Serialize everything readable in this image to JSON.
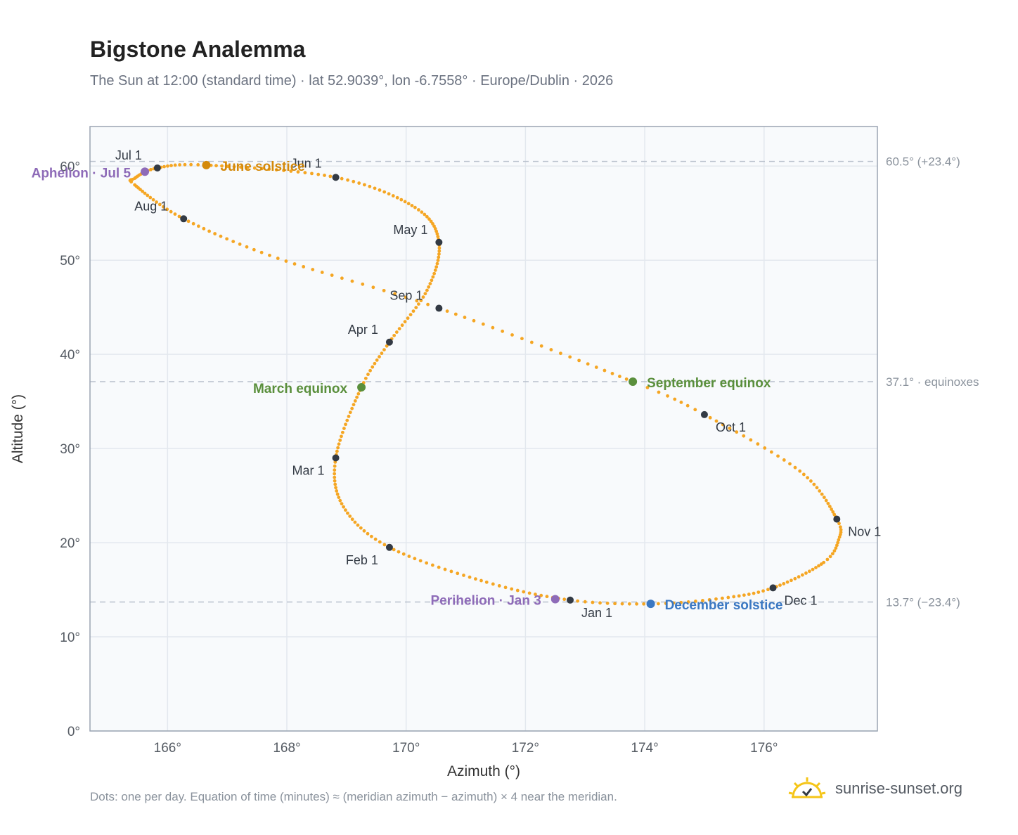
{
  "title": "Bigstone Analemma",
  "subtitle": "The Sun at 12:00 (standard time) · lat 52.9039°, lon -6.7558° · Europe/Dublin · 2026",
  "footnote": "Dots: one per day. Equation of time (minutes) ≈ (meridian azimuth − azimuth) × 4 near the meridian.",
  "brand": {
    "text": "sunrise-sunset.org",
    "icon": "sun-logo-icon"
  },
  "chart_data": {
    "type": "scatter",
    "xlabel": "Azimuth (°)",
    "ylabel": "Altitude (°)",
    "xlim": [
      164.7,
      177.9
    ],
    "ylim": [
      0,
      64.2
    ],
    "x_ticks": [
      166,
      168,
      170,
      172,
      174,
      176
    ],
    "x_tick_labels": [
      "166°",
      "168°",
      "170°",
      "172°",
      "174°",
      "176°"
    ],
    "y_ticks": [
      0,
      10,
      20,
      30,
      40,
      50,
      60
    ],
    "y_tick_labels": [
      "0°",
      "10°",
      "20°",
      "30°",
      "40°",
      "50°",
      "60°"
    ],
    "grid": true,
    "colors": {
      "path": "#f5a623",
      "month_marker": "#333a44",
      "equinox": "#5a8f3c",
      "solstice_june": "#d4890a",
      "solstice_december": "#3b78c2",
      "apsis": "#8e6bb8",
      "reference_line": "#b8c0cc"
    },
    "reference_lines": [
      {
        "y": 60.5,
        "label": "60.5° (+23.4°)"
      },
      {
        "y": 37.1,
        "label": "37.1° · equinoxes"
      },
      {
        "y": 13.7,
        "label": "13.7° (−23.4°)"
      }
    ],
    "month_markers": [
      {
        "label": "Jan 1",
        "az": 172.75,
        "alt": 13.9
      },
      {
        "label": "Feb 1",
        "az": 169.72,
        "alt": 19.5
      },
      {
        "label": "Mar 1",
        "az": 168.82,
        "alt": 29.0
      },
      {
        "label": "Apr 1",
        "az": 169.72,
        "alt": 41.3
      },
      {
        "label": "May 1",
        "az": 170.55,
        "alt": 51.9
      },
      {
        "label": "Jun 1",
        "az": 168.82,
        "alt": 58.8
      },
      {
        "label": "Jul 1",
        "az": 165.83,
        "alt": 59.8
      },
      {
        "label": "Aug 1",
        "az": 166.27,
        "alt": 54.4
      },
      {
        "label": "Sep 1",
        "az": 170.55,
        "alt": 44.9
      },
      {
        "label": "Oct 1",
        "az": 175.0,
        "alt": 33.6
      },
      {
        "label": "Nov 1",
        "az": 177.22,
        "alt": 22.5
      },
      {
        "label": "Dec 1",
        "az": 176.15,
        "alt": 15.2
      }
    ],
    "events": [
      {
        "label": "March equinox",
        "az": 169.25,
        "alt": 36.5,
        "kind": "equinox"
      },
      {
        "label": "June solstice",
        "az": 166.65,
        "alt": 60.1,
        "kind": "solstice_june"
      },
      {
        "label": "September equinox",
        "az": 173.8,
        "alt": 37.1,
        "kind": "equinox"
      },
      {
        "label": "December solstice",
        "az": 174.1,
        "alt": 13.5,
        "kind": "solstice_december"
      },
      {
        "label": "Perihelion · Jan 3",
        "az": 172.5,
        "alt": 14.0,
        "kind": "apsis"
      },
      {
        "label": "Aphelion · Jul 5",
        "az": 165.62,
        "alt": 59.4,
        "kind": "apsis"
      }
    ],
    "path": [
      {
        "day": 1,
        "az": 172.75,
        "alt": 13.9
      },
      {
        "day": 15,
        "az": 171.35,
        "alt": 15.8
      },
      {
        "day": 32,
        "az": 169.72,
        "alt": 19.5
      },
      {
        "day": 46,
        "az": 168.95,
        "alt": 23.8
      },
      {
        "day": 60,
        "az": 168.82,
        "alt": 29.0
      },
      {
        "day": 79,
        "az": 169.25,
        "alt": 36.5
      },
      {
        "day": 91,
        "az": 169.72,
        "alt": 41.3
      },
      {
        "day": 106,
        "az": 170.35,
        "alt": 46.8
      },
      {
        "day": 121,
        "az": 170.55,
        "alt": 51.9
      },
      {
        "day": 135,
        "az": 170.15,
        "alt": 55.6
      },
      {
        "day": 152,
        "az": 168.82,
        "alt": 58.8
      },
      {
        "day": 172,
        "az": 166.65,
        "alt": 60.1
      },
      {
        "day": 182,
        "az": 165.83,
        "alt": 59.8
      },
      {
        "day": 192,
        "az": 165.45,
        "alt": 58.7
      },
      {
        "day": 197,
        "az": 165.45,
        "alt": 58.0
      },
      {
        "day": 213,
        "az": 166.27,
        "alt": 54.4
      },
      {
        "day": 228,
        "az": 167.85,
        "alt": 50.2
      },
      {
        "day": 244,
        "az": 170.55,
        "alt": 44.9
      },
      {
        "day": 266,
        "az": 173.8,
        "alt": 37.1
      },
      {
        "day": 274,
        "az": 175.0,
        "alt": 33.6
      },
      {
        "day": 289,
        "az": 176.6,
        "alt": 27.6
      },
      {
        "day": 305,
        "az": 177.22,
        "alt": 22.5
      },
      {
        "day": 312,
        "az": 177.25,
        "alt": 20.3
      },
      {
        "day": 320,
        "az": 177.0,
        "alt": 17.9
      },
      {
        "day": 335,
        "az": 176.15,
        "alt": 15.2
      },
      {
        "day": 345,
        "az": 175.3,
        "alt": 14.1
      },
      {
        "day": 355,
        "az": 174.1,
        "alt": 13.5
      },
      {
        "day": 366,
        "az": 172.75,
        "alt": 13.9
      }
    ]
  }
}
